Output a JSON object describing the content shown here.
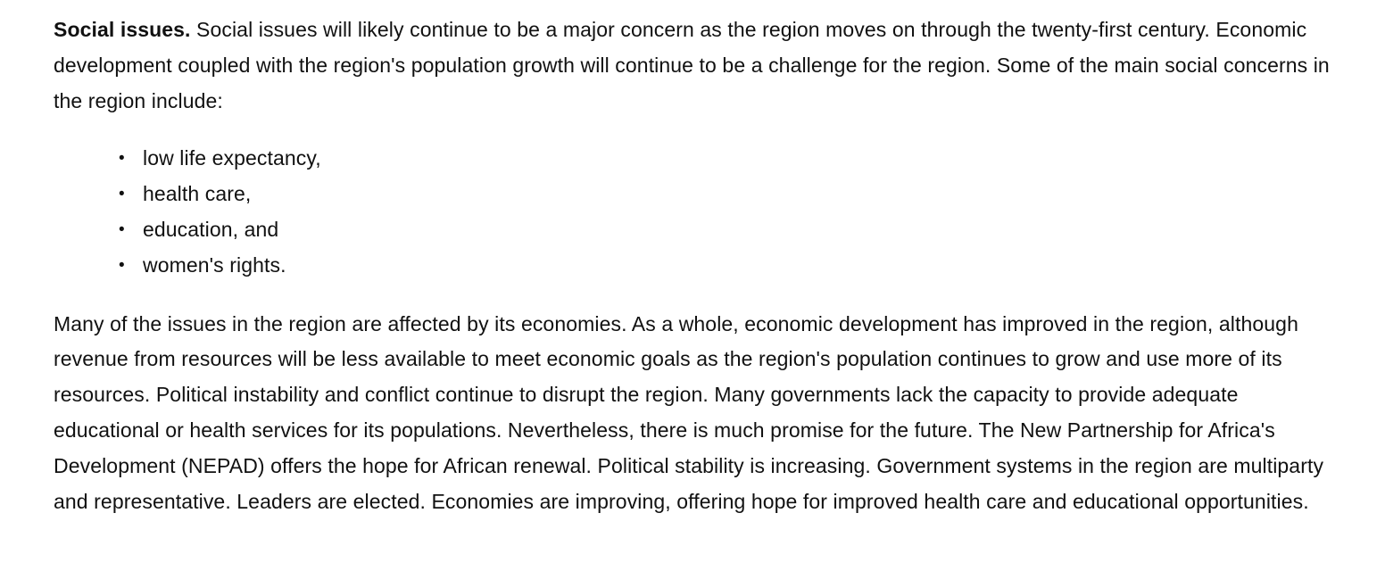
{
  "intro": {
    "lead": "Social issues.",
    "text": " Social issues will likely continue to be a major concern as the region moves on through the twenty-first century. Economic development coupled with the region's population growth will continue to be a challenge for the region. Some of the main social concerns in the region include:"
  },
  "concerns": [
    "low life expectancy,",
    "health care,",
    "education, and",
    "women's rights."
  ],
  "body": {
    "text": "Many of the issues in the region are affected by its economies. As a whole, economic development has improved in the region, although revenue from resources will be less available to meet economic goals as the region's population continues to grow and use more of its resources. Political instability and conflict continue to disrupt the region. Many governments lack the capacity to provide adequate educational or health services for its populations. Nevertheless, there is much promise for the future. The New Partnership for Africa's Development (NEPAD) offers the hope for African renewal. Political stability is increasing. Government systems in the region are multiparty and representative. Leaders are elected. Economies are improving, offering hope for improved health care and educational opportunities."
  }
}
